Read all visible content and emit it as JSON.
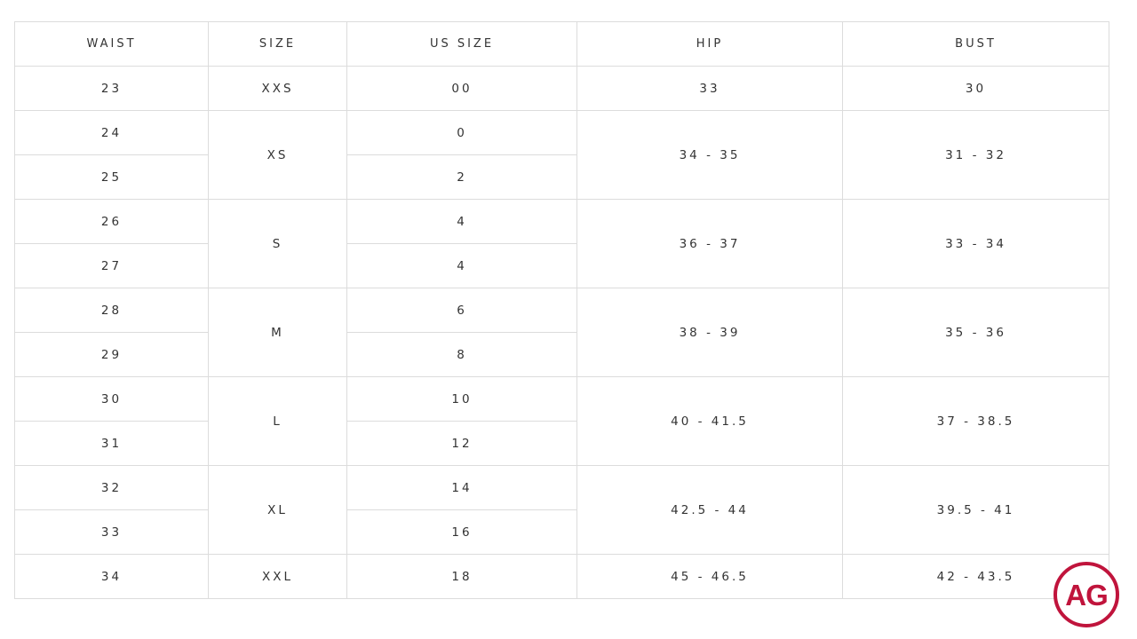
{
  "headers": [
    "WAIST",
    "SIZE",
    "US SIZE",
    "HIP",
    "BUST"
  ],
  "groups": [
    {
      "size": "XXS",
      "hip": "33",
      "bust": "30",
      "rows": [
        {
          "waist": "23",
          "us": "00"
        }
      ]
    },
    {
      "size": "XS",
      "hip": "34 - 35",
      "bust": "31 - 32",
      "rows": [
        {
          "waist": "24",
          "us": "0"
        },
        {
          "waist": "25",
          "us": "2"
        }
      ]
    },
    {
      "size": "S",
      "hip": "36 - 37",
      "bust": "33 - 34",
      "rows": [
        {
          "waist": "26",
          "us": "4"
        },
        {
          "waist": "27",
          "us": "4"
        }
      ]
    },
    {
      "size": "M",
      "hip": "38 - 39",
      "bust": "35 - 36",
      "rows": [
        {
          "waist": "28",
          "us": "6"
        },
        {
          "waist": "29",
          "us": "8"
        }
      ]
    },
    {
      "size": "L",
      "hip": "40 - 41.5",
      "bust": "37 - 38.5",
      "rows": [
        {
          "waist": "30",
          "us": "10"
        },
        {
          "waist": "31",
          "us": "12"
        }
      ]
    },
    {
      "size": "XL",
      "hip": "42.5 - 44",
      "bust": "39.5 - 41",
      "rows": [
        {
          "waist": "32",
          "us": "14"
        },
        {
          "waist": "33",
          "us": "16"
        }
      ]
    },
    {
      "size": "XXL",
      "hip": "45 - 46.5",
      "bust": "42 - 43.5",
      "rows": [
        {
          "waist": "34",
          "us": "18"
        }
      ]
    }
  ],
  "logo": {
    "text": "AG",
    "color": "#c0143c"
  }
}
